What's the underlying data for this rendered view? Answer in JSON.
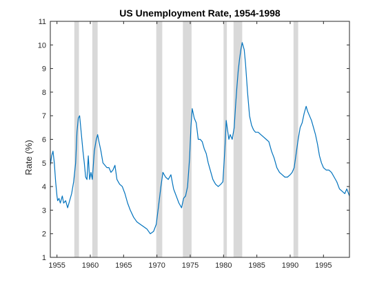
{
  "chart_data": {
    "type": "line",
    "title": "US Unemployment Rate, 1954-1998",
    "xlabel": "",
    "ylabel": "Rate (%)",
    "xlim": [
      1954,
      1998.9
    ],
    "ylim": [
      1,
      11
    ],
    "x_ticks": [
      1955,
      1960,
      1965,
      1970,
      1975,
      1980,
      1985,
      1990,
      1995
    ],
    "y_ticks": [
      1,
      2,
      3,
      4,
      5,
      6,
      7,
      8,
      9,
      10,
      11
    ],
    "grid": false,
    "legend": "none",
    "series": [
      {
        "color": "#0072BD",
        "x": [
          1954.0,
          1954.2,
          1954.4,
          1954.6,
          1954.8,
          1955.0,
          1955.1,
          1955.3,
          1955.5,
          1955.8,
          1956.0,
          1956.3,
          1956.6,
          1956.9,
          1957.2,
          1957.5,
          1957.8,
          1958.0,
          1958.2,
          1958.4,
          1958.6,
          1958.9,
          1959.1,
          1959.3,
          1959.5,
          1959.7,
          1959.9,
          1960.1,
          1960.3,
          1960.6,
          1960.9,
          1961.1,
          1961.3,
          1961.6,
          1961.9,
          1962.2,
          1962.5,
          1962.8,
          1963.1,
          1963.4,
          1963.7,
          1964.0,
          1964.4,
          1964.8,
          1965.2,
          1965.6,
          1966.0,
          1966.5,
          1967.0,
          1967.5,
          1968.0,
          1968.5,
          1969.0,
          1969.5,
          1969.9,
          1970.3,
          1970.6,
          1970.9,
          1971.3,
          1971.7,
          1972.1,
          1972.5,
          1972.9,
          1973.3,
          1973.7,
          1974.0,
          1974.3,
          1974.6,
          1974.9,
          1975.1,
          1975.3,
          1975.6,
          1975.9,
          1976.2,
          1976.5,
          1976.8,
          1977.1,
          1977.4,
          1977.7,
          1978.0,
          1978.4,
          1978.8,
          1979.2,
          1979.6,
          1979.9,
          1980.2,
          1980.4,
          1980.6,
          1980.8,
          1981.0,
          1981.3,
          1981.6,
          1981.8,
          1982.0,
          1982.2,
          1982.4,
          1982.6,
          1982.8,
          1982.9,
          1983.1,
          1983.3,
          1983.6,
          1983.9,
          1984.2,
          1984.5,
          1984.8,
          1985.2,
          1985.6,
          1986.0,
          1986.4,
          1986.8,
          1987.2,
          1987.6,
          1988.0,
          1988.4,
          1988.8,
          1989.2,
          1989.6,
          1990.0,
          1990.3,
          1990.6,
          1990.9,
          1991.2,
          1991.5,
          1991.8,
          1992.1,
          1992.4,
          1992.6,
          1992.9,
          1993.2,
          1993.5,
          1993.8,
          1994.1,
          1994.4,
          1994.7,
          1995.0,
          1995.4,
          1995.8,
          1996.2,
          1996.6,
          1997.0,
          1997.4,
          1997.8,
          1998.2,
          1998.5,
          1998.9
        ],
        "y": [
          4.9,
          5.3,
          5.5,
          5.0,
          4.2,
          3.6,
          3.4,
          3.5,
          3.3,
          3.6,
          3.3,
          3.4,
          3.1,
          3.4,
          3.7,
          4.2,
          5.0,
          6.3,
          6.9,
          7.0,
          6.4,
          5.5,
          5.0,
          4.4,
          4.3,
          5.3,
          4.3,
          4.6,
          4.3,
          5.5,
          6.0,
          6.2,
          5.9,
          5.5,
          5.0,
          4.9,
          4.8,
          4.8,
          4.6,
          4.7,
          4.9,
          4.3,
          4.1,
          4.0,
          3.7,
          3.3,
          3.0,
          2.7,
          2.5,
          2.4,
          2.3,
          2.2,
          2.0,
          2.1,
          2.4,
          3.3,
          4.0,
          4.6,
          4.4,
          4.3,
          4.5,
          3.9,
          3.6,
          3.3,
          3.1,
          3.5,
          3.6,
          4.0,
          5.2,
          6.5,
          7.3,
          6.9,
          6.7,
          6.0,
          6.0,
          5.9,
          5.6,
          5.4,
          5.0,
          4.7,
          4.3,
          4.1,
          4.0,
          4.1,
          4.2,
          5.6,
          6.8,
          6.4,
          6.0,
          6.2,
          6.0,
          6.5,
          7.4,
          8.2,
          8.9,
          9.4,
          9.8,
          10.1,
          10.0,
          9.8,
          9.2,
          8.0,
          7.0,
          6.6,
          6.4,
          6.3,
          6.3,
          6.2,
          6.1,
          6.0,
          5.9,
          5.5,
          5.2,
          4.8,
          4.6,
          4.5,
          4.4,
          4.4,
          4.5,
          4.6,
          4.8,
          5.4,
          6.0,
          6.5,
          6.7,
          7.1,
          7.4,
          7.2,
          7.0,
          6.8,
          6.5,
          6.2,
          5.8,
          5.3,
          5.0,
          4.8,
          4.7,
          4.7,
          4.6,
          4.4,
          4.2,
          3.9,
          3.8,
          3.7,
          3.9,
          3.6
        ]
      }
    ],
    "shaded_periods": [
      [
        1957.6,
        1958.3
      ],
      [
        1960.3,
        1961.1
      ],
      [
        1969.9,
        1970.8
      ],
      [
        1973.9,
        1975.2
      ],
      [
        1980.0,
        1980.5
      ],
      [
        1981.5,
        1982.8
      ],
      [
        1990.5,
        1991.2
      ]
    ],
    "shading_color": "#d9d9d9"
  }
}
